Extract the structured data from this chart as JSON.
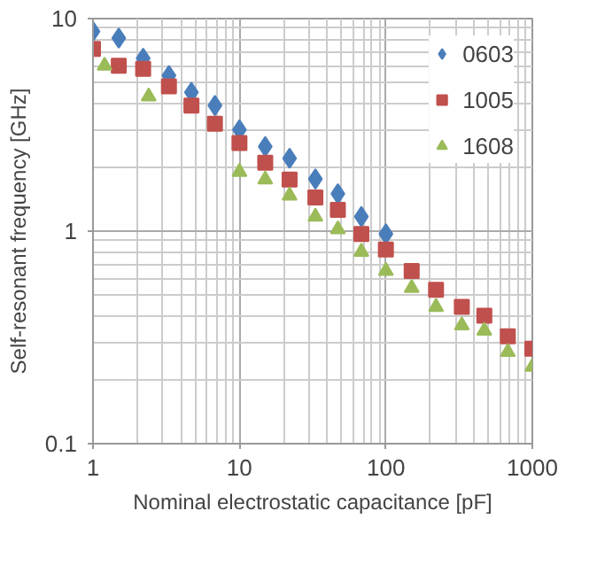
{
  "chart_data": {
    "type": "scatter",
    "xlabel": "Nominal electrostatic capacitance [pF]",
    "ylabel": "Self-resonant frequency [GHz]",
    "log": "xy",
    "xlim": [
      1,
      1000
    ],
    "ylim": [
      0.1,
      10
    ],
    "xticks": [
      1,
      10,
      100,
      1000
    ],
    "yticks": [
      0.1,
      1,
      10
    ],
    "grid": true,
    "legend": "top right",
    "series": [
      {
        "name": "0603",
        "color": "#4a7ebb",
        "marker": "diamond",
        "x": [
          1,
          1.5,
          2.2,
          3.3,
          4.7,
          6.8,
          10,
          15,
          22,
          33,
          47,
          68,
          100
        ],
        "values": [
          8.7,
          8.1,
          6.5,
          5.4,
          4.5,
          3.9,
          3.0,
          2.5,
          2.2,
          1.76,
          1.5,
          1.17,
          0.97
        ]
      },
      {
        "name": "1005",
        "color": "#c0504d",
        "marker": "square",
        "x": [
          1,
          1.5,
          2.2,
          3.3,
          4.7,
          6.8,
          10,
          15,
          22,
          33,
          47,
          68,
          100,
          150,
          220,
          330,
          470,
          680,
          1000
        ],
        "values": [
          7.2,
          6.0,
          5.8,
          4.8,
          3.9,
          3.2,
          2.6,
          2.1,
          1.75,
          1.44,
          1.26,
          0.97,
          0.82,
          0.65,
          0.53,
          0.44,
          0.4,
          0.32,
          0.28
        ]
      },
      {
        "name": "1608",
        "color": "#9bbb59",
        "marker": "triangle",
        "x": [
          1.2,
          2.4,
          10,
          15,
          22,
          33,
          47,
          68,
          100,
          150,
          220,
          330,
          470,
          680,
          1000
        ],
        "values": [
          6.0,
          4.3,
          1.9,
          1.75,
          1.47,
          1.17,
          1.02,
          0.8,
          0.65,
          0.54,
          0.44,
          0.36,
          0.34,
          0.27,
          0.23
        ]
      }
    ]
  }
}
